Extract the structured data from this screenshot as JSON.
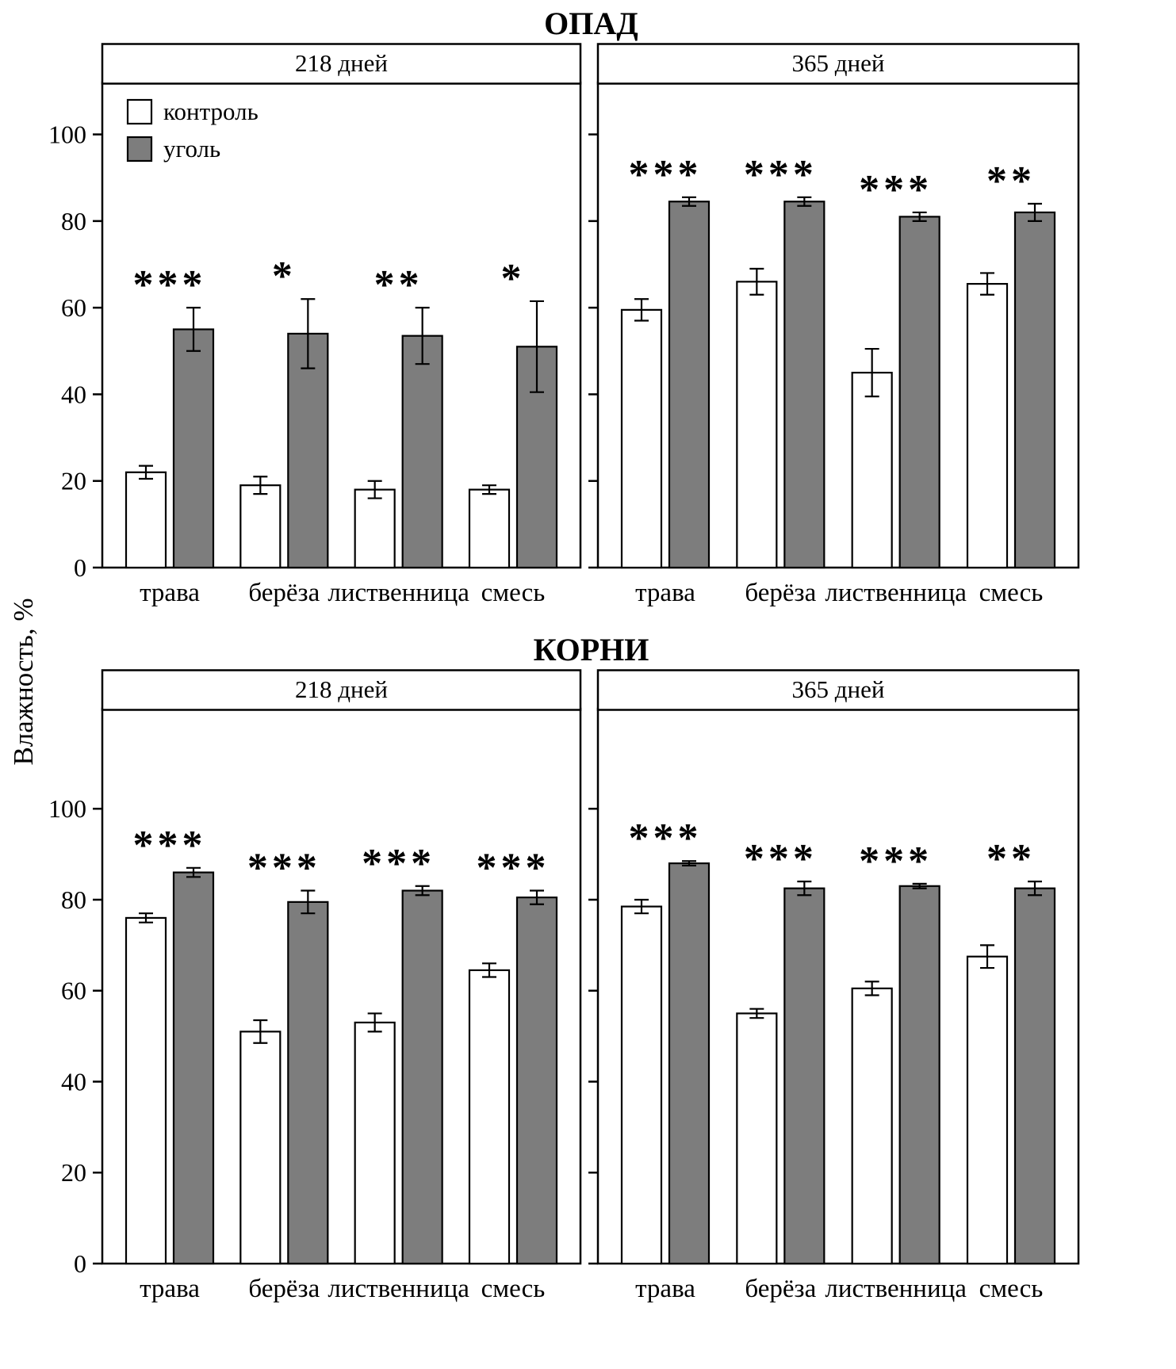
{
  "figure": {
    "ylabel": "Влажность, %",
    "sections": [
      {
        "title": "ОПАД"
      },
      {
        "title": "КОРНИ"
      }
    ]
  },
  "legend": {
    "items": [
      {
        "label": "контроль",
        "color": "#ffffff"
      },
      {
        "label": "уголь",
        "color": "#7d7d7d"
      }
    ]
  },
  "chart_data": [
    {
      "type": "bar",
      "section": "ОПАД",
      "panel": "218 дней",
      "categories": [
        "трава",
        "берёза",
        "лиственница",
        "смесь"
      ],
      "series": [
        {
          "name": "контроль",
          "color": "#ffffff",
          "values": [
            22,
            19,
            18,
            18
          ],
          "errors": [
            1.5,
            2,
            2,
            1
          ]
        },
        {
          "name": "уголь",
          "color": "#7d7d7d",
          "values": [
            55,
            54,
            53.5,
            51
          ],
          "errors": [
            5,
            8,
            6.5,
            10.5
          ]
        }
      ],
      "significance": [
        "***",
        "*",
        "**",
        "*"
      ],
      "ylabel": "Влажность, %",
      "ylim": [
        0,
        112
      ],
      "yticks": [
        0,
        20,
        40,
        60,
        80,
        100
      ],
      "grid": false,
      "legend_position": "upper-left",
      "show_y_labels": true,
      "legend": true
    },
    {
      "type": "bar",
      "section": "ОПАД",
      "panel": "365 дней",
      "categories": [
        "трава",
        "берёза",
        "лиственница",
        "смесь"
      ],
      "series": [
        {
          "name": "контроль",
          "color": "#ffffff",
          "values": [
            59.5,
            66,
            45,
            65.5
          ],
          "errors": [
            2.5,
            3,
            5.5,
            2.5
          ]
        },
        {
          "name": "уголь",
          "color": "#7d7d7d",
          "values": [
            84.5,
            84.5,
            81,
            82
          ],
          "errors": [
            1,
            1,
            1,
            2
          ]
        }
      ],
      "significance": [
        "***",
        "***",
        "***",
        "**"
      ],
      "ylabel": "Влажность, %",
      "ylim": [
        0,
        112
      ],
      "yticks": [
        0,
        20,
        40,
        60,
        80,
        100
      ],
      "grid": false,
      "legend_position": "none",
      "show_y_labels": false,
      "legend": false
    },
    {
      "type": "bar",
      "section": "КОРНИ",
      "panel": "218 дней",
      "categories": [
        "трава",
        "берёза",
        "лиственница",
        "смесь"
      ],
      "series": [
        {
          "name": "контроль",
          "color": "#ffffff",
          "values": [
            76,
            51,
            53,
            64.5
          ],
          "errors": [
            1,
            2.5,
            2,
            1.5
          ]
        },
        {
          "name": "уголь",
          "color": "#7d7d7d",
          "values": [
            86,
            79.5,
            82,
            80.5
          ],
          "errors": [
            1,
            2.5,
            1,
            1.5
          ]
        }
      ],
      "significance": [
        "***",
        "***",
        "***",
        "***"
      ],
      "ylabel": "Влажность, %",
      "ylim": [
        0,
        122
      ],
      "yticks": [
        0,
        20,
        40,
        60,
        80,
        100
      ],
      "grid": false,
      "legend_position": "none",
      "show_y_labels": true,
      "legend": false
    },
    {
      "type": "bar",
      "section": "КОРНИ",
      "panel": "365 дней",
      "categories": [
        "трава",
        "берёза",
        "лиственница",
        "смесь"
      ],
      "series": [
        {
          "name": "контроль",
          "color": "#ffffff",
          "values": [
            78.5,
            55,
            60.5,
            67.5
          ],
          "errors": [
            1.5,
            1,
            1.5,
            2.5
          ]
        },
        {
          "name": "уголь",
          "color": "#7d7d7d",
          "values": [
            88,
            82.5,
            83,
            82.5
          ],
          "errors": [
            0.5,
            1.5,
            0.5,
            1.5
          ]
        }
      ],
      "significance": [
        "***",
        "***",
        "***",
        "**"
      ],
      "ylabel": "Влажность, %",
      "ylim": [
        0,
        122
      ],
      "yticks": [
        0,
        20,
        40,
        60,
        80,
        100
      ],
      "grid": false,
      "legend_position": "none",
      "show_y_labels": false,
      "legend": false
    }
  ]
}
